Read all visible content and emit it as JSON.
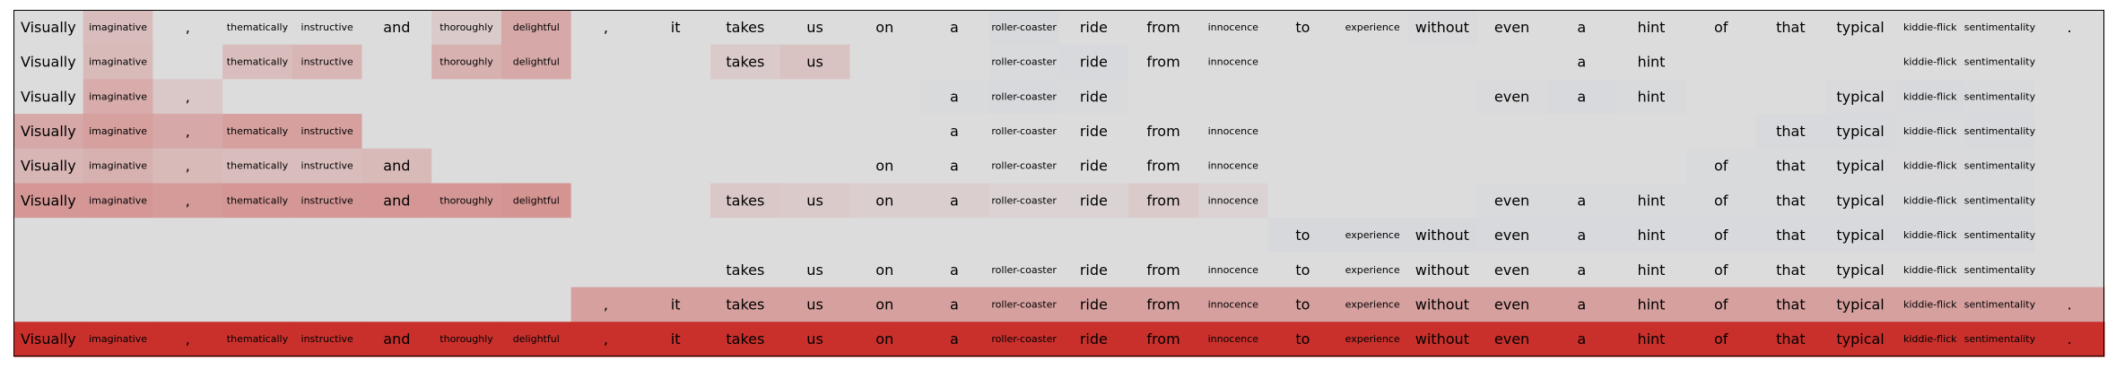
{
  "chart_data": {
    "type": "heatmap",
    "title": "",
    "xlabel": "",
    "ylabel": "",
    "tokens": [
      "Visually",
      "imaginative",
      ",",
      "thematically",
      "instructive",
      "and",
      "thoroughly",
      "delightful",
      ",",
      "it",
      "takes",
      "us",
      "on",
      "a",
      "roller-coaster",
      "ride",
      "from",
      "innocence",
      "to",
      "experience",
      "without",
      "even",
      "a",
      "hint",
      "of",
      "that",
      "typical",
      "kiddie-flick",
      "sentimentality",
      "."
    ],
    "rows": [
      {
        "visible": [
          1,
          1,
          1,
          1,
          1,
          1,
          1,
          1,
          1,
          1,
          1,
          1,
          1,
          1,
          1,
          1,
          1,
          1,
          1,
          1,
          1,
          1,
          1,
          1,
          1,
          1,
          1,
          1,
          1,
          1
        ],
        "values": [
          0,
          0.18,
          0,
          0,
          0,
          0,
          0.1,
          0.3,
          0,
          0,
          0,
          0,
          0,
          0,
          -0.08,
          0,
          0,
          0,
          0,
          0,
          -0.05,
          0,
          0,
          0,
          0,
          0,
          0,
          0,
          0,
          0
        ]
      },
      {
        "visible": [
          1,
          1,
          0,
          1,
          1,
          0,
          1,
          1,
          0,
          0,
          1,
          1,
          0,
          0,
          1,
          1,
          1,
          1,
          0,
          0,
          0,
          0,
          1,
          1,
          0,
          0,
          0,
          1,
          1,
          0
        ],
        "values": [
          0,
          0.2,
          0,
          0.18,
          0.22,
          0,
          0.25,
          0.3,
          0,
          0,
          0.1,
          0.15,
          0,
          0,
          -0.06,
          -0.08,
          0,
          0,
          0,
          0,
          0,
          0,
          0,
          0,
          0,
          0,
          0,
          0,
          0,
          0
        ]
      },
      {
        "visible": [
          1,
          1,
          1,
          0,
          0,
          0,
          0,
          0,
          0,
          0,
          0,
          0,
          0,
          1,
          1,
          1,
          0,
          0,
          0,
          0,
          0,
          1,
          1,
          1,
          0,
          0,
          1,
          1,
          1,
          0
        ],
        "values": [
          0,
          0.28,
          0.12,
          0,
          0,
          0,
          0,
          0,
          0,
          0,
          0,
          0,
          0,
          -0.06,
          -0.1,
          -0.06,
          0,
          0,
          0,
          0,
          0,
          -0.05,
          -0.08,
          -0.06,
          0,
          0,
          -0.05,
          -0.08,
          -0.06,
          0
        ]
      },
      {
        "visible": [
          1,
          1,
          1,
          1,
          1,
          0,
          0,
          0,
          0,
          0,
          0,
          0,
          0,
          1,
          1,
          1,
          1,
          1,
          0,
          0,
          0,
          0,
          0,
          0,
          0,
          1,
          1,
          1,
          1,
          0
        ],
        "values": [
          0.3,
          0.35,
          0.3,
          0.35,
          0.35,
          0,
          0,
          0,
          0,
          0,
          0,
          0,
          0,
          0,
          0,
          0,
          0,
          0,
          0,
          0,
          0,
          0,
          0,
          0,
          0,
          -0.08,
          -0.08,
          -0.06,
          -0.08,
          0
        ]
      },
      {
        "visible": [
          1,
          1,
          1,
          1,
          1,
          1,
          0,
          0,
          0,
          0,
          0,
          0,
          1,
          1,
          1,
          1,
          1,
          1,
          0,
          0,
          0,
          0,
          0,
          0,
          1,
          1,
          1,
          1,
          1,
          0
        ],
        "values": [
          0.22,
          0.25,
          0.2,
          0.18,
          0.18,
          0.2,
          0,
          0,
          0,
          0,
          0,
          0,
          0,
          0,
          0,
          0,
          0,
          0,
          0,
          0,
          0,
          0,
          0,
          0,
          -0.06,
          -0.06,
          -0.06,
          -0.05,
          -0.06,
          0
        ]
      },
      {
        "visible": [
          1,
          1,
          1,
          1,
          1,
          1,
          1,
          1,
          0,
          0,
          1,
          1,
          1,
          1,
          1,
          1,
          1,
          1,
          0,
          0,
          0,
          1,
          1,
          1,
          1,
          1,
          1,
          1,
          1,
          0
        ],
        "values": [
          0.4,
          0.4,
          0.38,
          0.4,
          0.4,
          0.4,
          0.4,
          0.42,
          0,
          0,
          0.12,
          0.1,
          0.08,
          0.08,
          0.05,
          0.05,
          0.1,
          0.05,
          0,
          0,
          0,
          -0.06,
          -0.06,
          -0.06,
          -0.06,
          -0.06,
          -0.06,
          -0.06,
          -0.06,
          0
        ]
      },
      {
        "visible": [
          0,
          0,
          0,
          0,
          0,
          0,
          0,
          0,
          0,
          0,
          0,
          0,
          0,
          0,
          0,
          0,
          0,
          0,
          1,
          1,
          1,
          1,
          1,
          1,
          1,
          1,
          1,
          1,
          1,
          0
        ],
        "values": [
          0,
          0,
          0,
          0,
          0,
          0,
          0,
          0,
          0,
          0,
          0,
          0,
          0,
          0,
          0,
          0,
          0,
          0,
          -0.12,
          -0.12,
          -0.12,
          -0.1,
          -0.1,
          -0.1,
          -0.1,
          -0.1,
          -0.1,
          -0.1,
          -0.1,
          0
        ]
      },
      {
        "visible": [
          0,
          0,
          0,
          0,
          0,
          0,
          0,
          0,
          0,
          0,
          1,
          1,
          1,
          1,
          1,
          1,
          1,
          1,
          1,
          1,
          1,
          1,
          1,
          1,
          1,
          1,
          1,
          1,
          1,
          0
        ],
        "values": [
          0,
          0,
          0,
          0,
          0,
          0,
          0,
          0,
          0,
          0,
          0,
          0,
          0,
          0,
          0,
          0,
          0,
          0,
          0,
          0,
          0,
          0,
          0,
          0,
          0,
          0,
          0,
          0,
          0,
          0
        ]
      },
      {
        "visible": [
          0,
          0,
          0,
          0,
          0,
          0,
          0,
          0,
          1,
          1,
          1,
          1,
          1,
          1,
          1,
          1,
          1,
          1,
          1,
          1,
          1,
          1,
          1,
          1,
          1,
          1,
          1,
          1,
          1,
          1
        ],
        "values": [
          0,
          0,
          0,
          0,
          0,
          0,
          0,
          0,
          0.35,
          0.35,
          0.35,
          0.35,
          0.35,
          0.35,
          0.35,
          0.35,
          0.35,
          0.35,
          0.35,
          0.35,
          0.35,
          0.35,
          0.35,
          0.35,
          0.35,
          0.35,
          0.35,
          0.35,
          0.35,
          0.35
        ]
      },
      {
        "visible": [
          1,
          1,
          1,
          1,
          1,
          1,
          1,
          1,
          1,
          1,
          1,
          1,
          1,
          1,
          1,
          1,
          1,
          1,
          1,
          1,
          1,
          1,
          1,
          1,
          1,
          1,
          1,
          1,
          1,
          1
        ],
        "values": [
          1,
          1,
          1,
          1,
          1,
          1,
          1,
          1,
          1,
          1,
          1,
          1,
          1,
          1,
          1,
          1,
          1,
          1,
          1,
          1,
          1,
          1,
          1,
          1,
          1,
          1,
          1,
          1,
          1,
          1
        ]
      }
    ],
    "colormap": {
      "neutral": "#dcdcdc",
      "positive": "#c9302c",
      "negative": "#aabce0"
    },
    "grid": false,
    "legend": "none"
  }
}
